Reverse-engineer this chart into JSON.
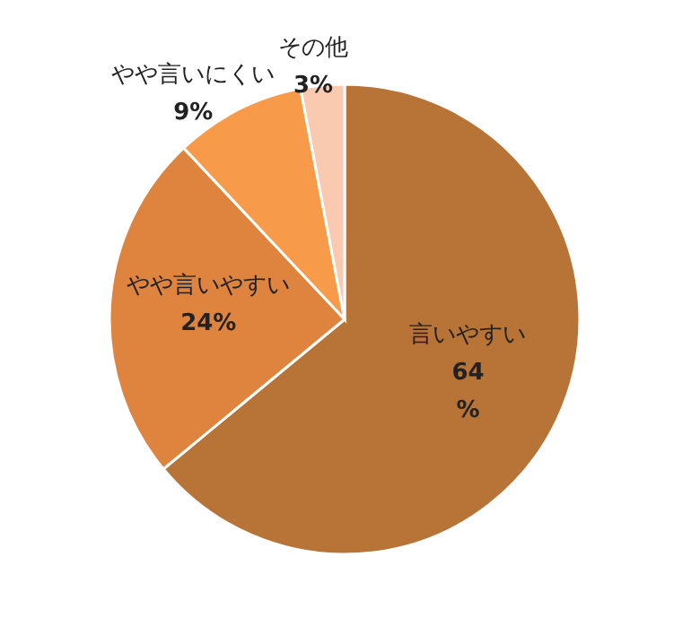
{
  "chart_data": {
    "type": "pie",
    "categories": [
      "言いやすい",
      "やや言いやすい",
      "やや言いにくい",
      "その他"
    ],
    "values": [
      64,
      24,
      9,
      3
    ],
    "colors": [
      "#b87336",
      "#df843f",
      "#f79b4b",
      "#f9c9b0"
    ],
    "value_labels": [
      "64\n%",
      "24%",
      "9%",
      "3%"
    ]
  }
}
